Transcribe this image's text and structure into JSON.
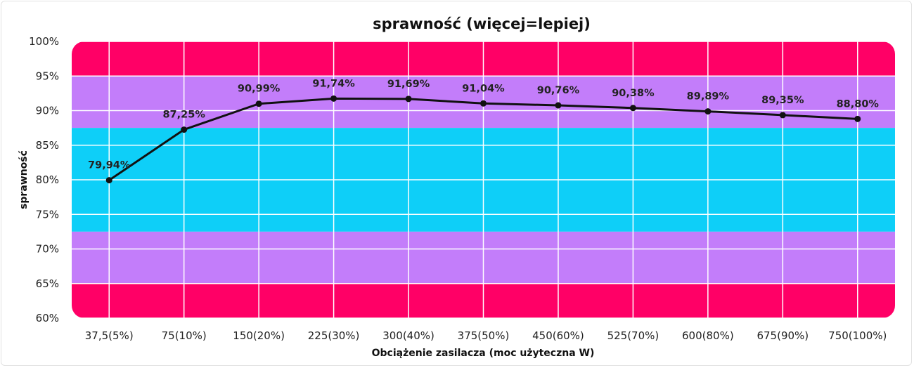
{
  "chart_data": {
    "type": "line",
    "title": "sprawność (więcej=lepiej)",
    "xlabel": "Obciążenie zasilacza (moc użyteczna W)",
    "ylabel": "sprawność",
    "categories": [
      "37,5(5%)",
      "75(10%)",
      "150(20%)",
      "225(30%)",
      "300(40%)",
      "375(50%)",
      "450(60%)",
      "525(70%)",
      "600(80%)",
      "675(90%)",
      "750(100%)"
    ],
    "series": [
      {
        "values": [
          79.94,
          87.25,
          90.99,
          91.74,
          91.69,
          91.04,
          90.76,
          90.38,
          89.89,
          89.35,
          88.8
        ],
        "labels": [
          "79,94%",
          "87,25%",
          "90,99%",
          "91,74%",
          "91,69%",
          "91,04%",
          "90,76%",
          "90,38%",
          "89,89%",
          "89,35%",
          "88,80%"
        ],
        "color": "#111111"
      }
    ],
    "ylim": [
      60,
      100
    ],
    "yticks": [
      100,
      95,
      90,
      85,
      80,
      75,
      70,
      65,
      60
    ],
    "ytick_labels": [
      "100%",
      "95%",
      "90%",
      "85%",
      "80%",
      "75%",
      "70%",
      "65%",
      "60%"
    ],
    "grid": true,
    "background_bands": [
      {
        "from": 95,
        "to": 100,
        "color": "#ff0066"
      },
      {
        "from": 87.5,
        "to": 95,
        "color": "#c37dfa"
      },
      {
        "from": 72.5,
        "to": 87.5,
        "color": "#0ecff8"
      },
      {
        "from": 65,
        "to": 72.5,
        "color": "#c37dfa"
      },
      {
        "from": 60,
        "to": 65,
        "color": "#ff0066"
      }
    ]
  }
}
